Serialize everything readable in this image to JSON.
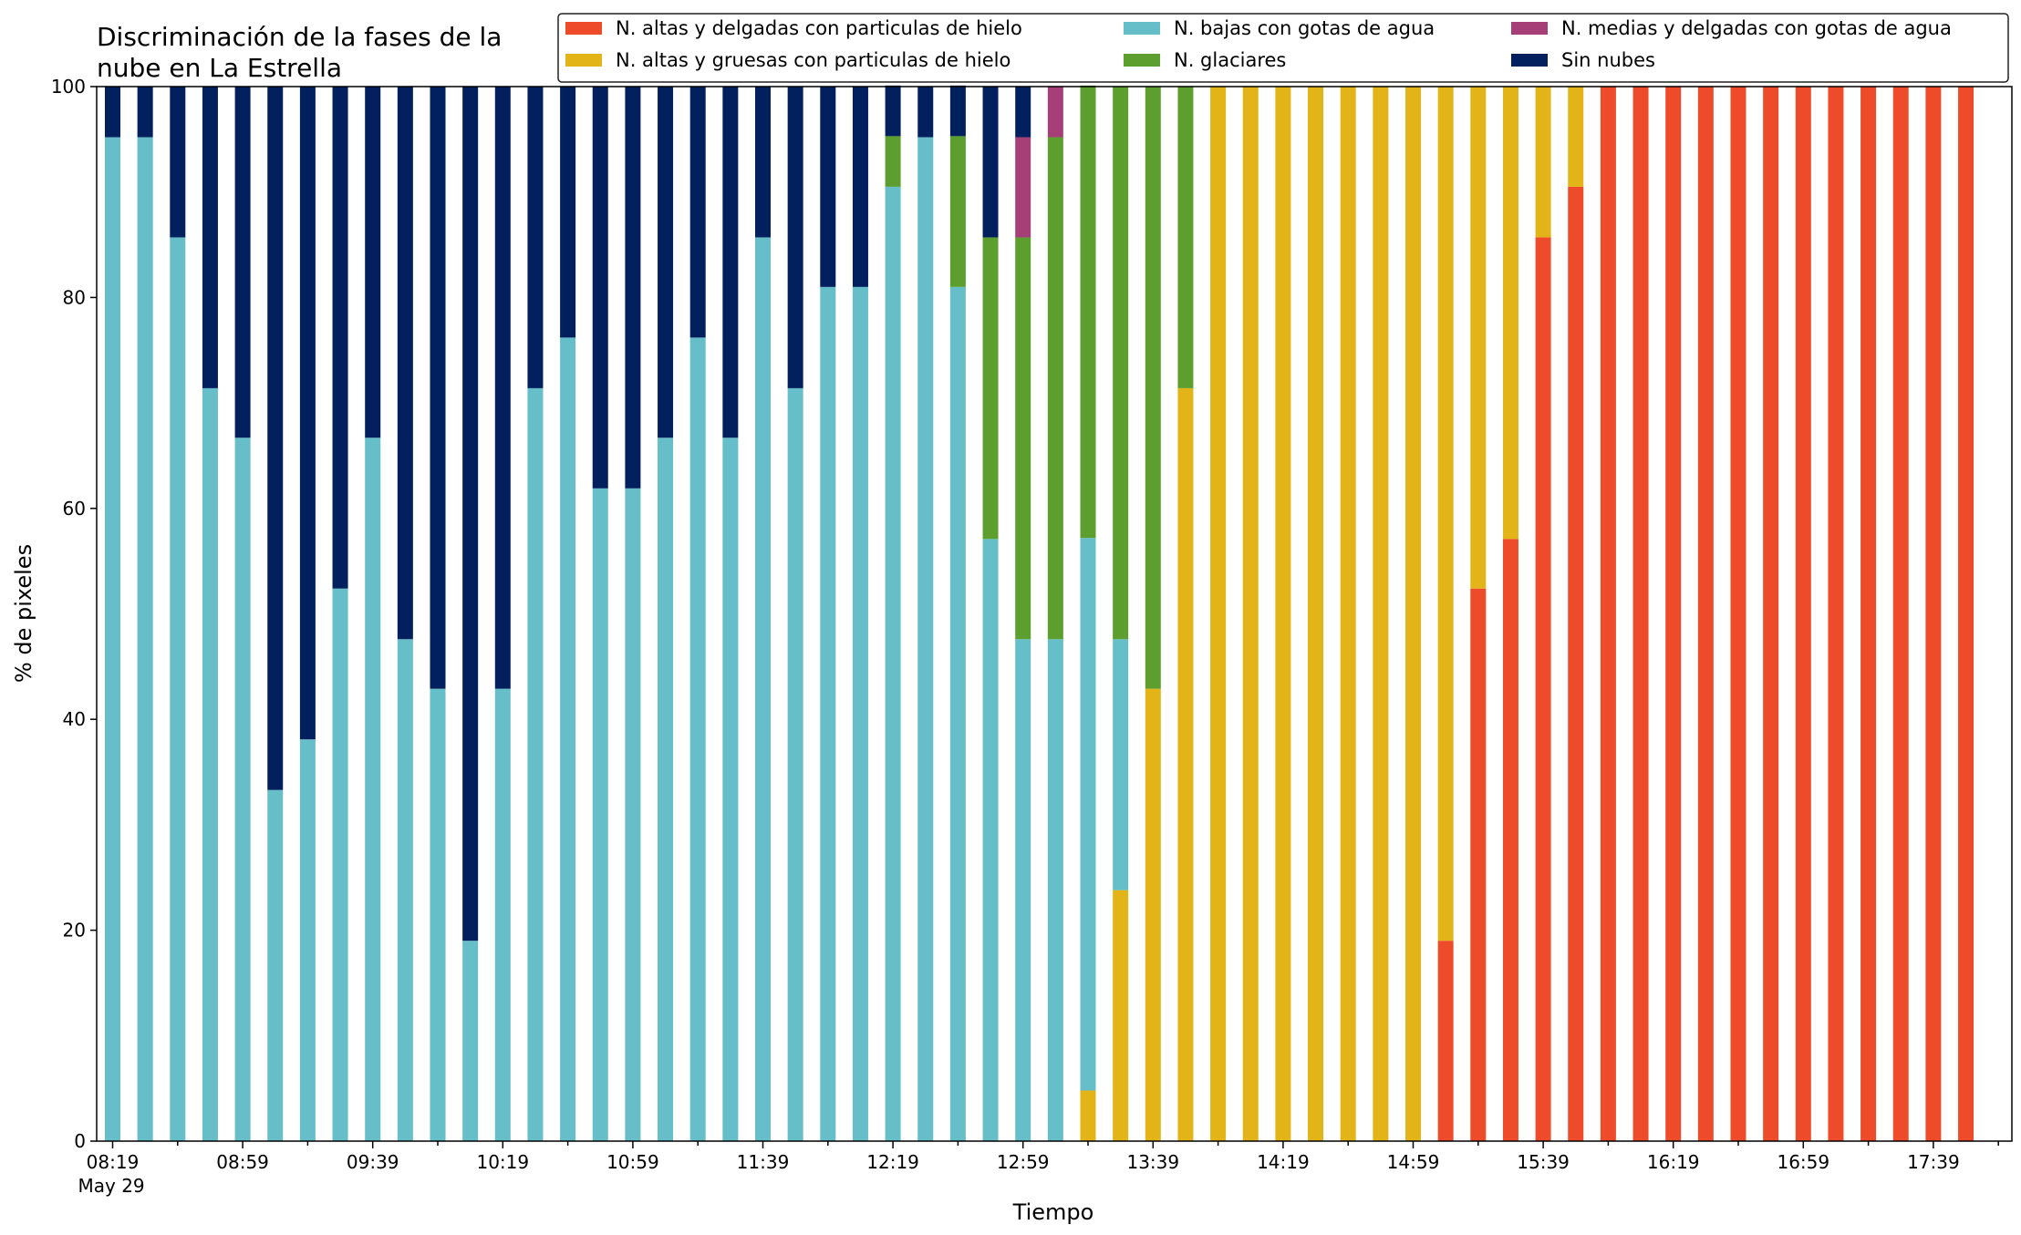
{
  "chart_data": {
    "type": "bar",
    "stacked": true,
    "title_lines": [
      "Discriminación de la fases de la",
      "nube en La Estrella"
    ],
    "xlabel": "Tiempo",
    "ylabel": "% de pixeles",
    "ylim": [
      0,
      100
    ],
    "yticks": [
      0,
      20,
      40,
      60,
      80,
      100
    ],
    "grid": false,
    "legend_position": "top-right",
    "x_tick_labels": [
      "08:19",
      "08:59",
      "09:39",
      "10:19",
      "10:59",
      "11:39",
      "12:19",
      "12:59",
      "13:39",
      "14:19",
      "14:59",
      "15:39",
      "16:19",
      "16:59",
      "17:39"
    ],
    "x_date_label": "May 29",
    "categories": [
      "08:19",
      "08:29",
      "08:39",
      "08:49",
      "08:59",
      "09:09",
      "09:19",
      "09:29",
      "09:39",
      "09:49",
      "09:59",
      "10:09",
      "10:19",
      "10:29",
      "10:39",
      "10:49",
      "10:59",
      "11:09",
      "11:19",
      "11:29",
      "11:39",
      "11:49",
      "11:59",
      "12:09",
      "12:19",
      "12:29",
      "12:39",
      "12:49",
      "12:59",
      "13:09",
      "13:19",
      "13:29",
      "13:39",
      "13:49",
      "13:59",
      "14:09",
      "14:19",
      "14:29",
      "14:39",
      "14:49",
      "14:59",
      "15:09",
      "15:19",
      "15:29",
      "15:39",
      "15:49",
      "15:59",
      "16:09",
      "16:19",
      "16:29",
      "16:39",
      "16:49",
      "16:59",
      "17:09",
      "17:19",
      "17:29",
      "17:39",
      "17:49"
    ],
    "series": [
      {
        "name": "N. altas y delgadas con particulas de hielo",
        "color": "#ee4b2b",
        "values": [
          0,
          0,
          0,
          0,
          0,
          0,
          0,
          0,
          0,
          0,
          0,
          0,
          0,
          0,
          0,
          0,
          0,
          0,
          0,
          0,
          0,
          0,
          0,
          0,
          0,
          0,
          0,
          0,
          0,
          0,
          0,
          0,
          0,
          0,
          0,
          0,
          0,
          0,
          0,
          0,
          0,
          19,
          52.4,
          57.1,
          85.7,
          90.5,
          100,
          100,
          100,
          100,
          100,
          100,
          100,
          100,
          100,
          100,
          100,
          100
        ]
      },
      {
        "name": "N. altas y gruesas con particulas de hielo",
        "color": "#e3b418",
        "values": [
          0,
          0,
          0,
          0,
          0,
          0,
          0,
          0,
          0,
          0,
          0,
          0,
          0,
          0,
          0,
          0,
          0,
          0,
          0,
          0,
          0,
          0,
          0,
          0,
          0,
          0,
          0,
          0,
          0,
          0,
          4.8,
          23.8,
          42.9,
          71.4,
          100,
          100,
          100,
          100,
          100,
          100,
          100,
          81,
          47.6,
          42.9,
          14.3,
          9.5,
          0,
          0,
          0,
          0,
          0,
          0,
          0,
          0,
          0,
          0,
          0,
          0
        ]
      },
      {
        "name": "N. bajas con gotas de agua",
        "color": "#65bec8",
        "values": [
          95.2,
          95.2,
          85.7,
          71.4,
          66.7,
          33.3,
          38.1,
          52.4,
          66.7,
          47.6,
          42.9,
          19,
          42.9,
          71.4,
          76.2,
          61.9,
          61.9,
          66.7,
          76.2,
          66.7,
          85.7,
          71.4,
          81,
          81,
          90.5,
          95.2,
          81,
          57.1,
          47.6,
          47.6,
          52.4,
          23.8,
          0,
          0,
          0,
          0,
          0,
          0,
          0,
          0,
          0,
          0,
          0,
          0,
          0,
          0,
          0,
          0,
          0,
          0,
          0,
          0,
          0,
          0,
          0,
          0,
          0,
          0
        ]
      },
      {
        "name": "N. glaciares",
        "color": "#5c9f2e",
        "values": [
          0,
          0,
          0,
          0,
          0,
          0,
          0,
          0,
          0,
          0,
          0,
          0,
          0,
          0,
          0,
          0,
          0,
          0,
          0,
          0,
          0,
          0,
          0,
          0,
          4.8,
          0,
          14.3,
          28.6,
          38.1,
          47.6,
          42.9,
          52.4,
          57.1,
          28.6,
          0,
          0,
          0,
          0,
          0,
          0,
          0,
          0,
          0,
          0,
          0,
          0,
          0,
          0,
          0,
          0,
          0,
          0,
          0,
          0,
          0,
          0,
          0,
          0
        ]
      },
      {
        "name": "N. medias y delgadas con gotas de agua",
        "color": "#a63f78",
        "values": [
          0,
          0,
          0,
          0,
          0,
          0,
          0,
          0,
          0,
          0,
          0,
          0,
          0,
          0,
          0,
          0,
          0,
          0,
          0,
          0,
          0,
          0,
          0,
          0,
          0,
          0,
          0,
          0,
          9.5,
          4.8,
          0,
          0,
          0,
          0,
          0,
          0,
          0,
          0,
          0,
          0,
          0,
          0,
          0,
          0,
          0,
          0,
          0,
          0,
          0,
          0,
          0,
          0,
          0,
          0,
          0,
          0,
          0,
          0
        ]
      },
      {
        "name": "Sin nubes",
        "color": "#03205e",
        "values": [
          4.8,
          4.8,
          14.3,
          28.6,
          33.3,
          66.7,
          61.9,
          47.6,
          33.3,
          52.4,
          57.1,
          81,
          57.1,
          28.6,
          23.8,
          38.1,
          38.1,
          33.3,
          23.8,
          33.3,
          14.3,
          28.6,
          19,
          19,
          4.8,
          4.8,
          4.8,
          14.3,
          4.8,
          0,
          0,
          0,
          0,
          0,
          0,
          0,
          0,
          0,
          0,
          0,
          0,
          0,
          0,
          0,
          0,
          0,
          0,
          0,
          0,
          0,
          0,
          0,
          0,
          0,
          0,
          0,
          0,
          0
        ]
      }
    ],
    "legend_order": [
      0,
      1,
      2,
      3,
      4,
      5
    ]
  }
}
